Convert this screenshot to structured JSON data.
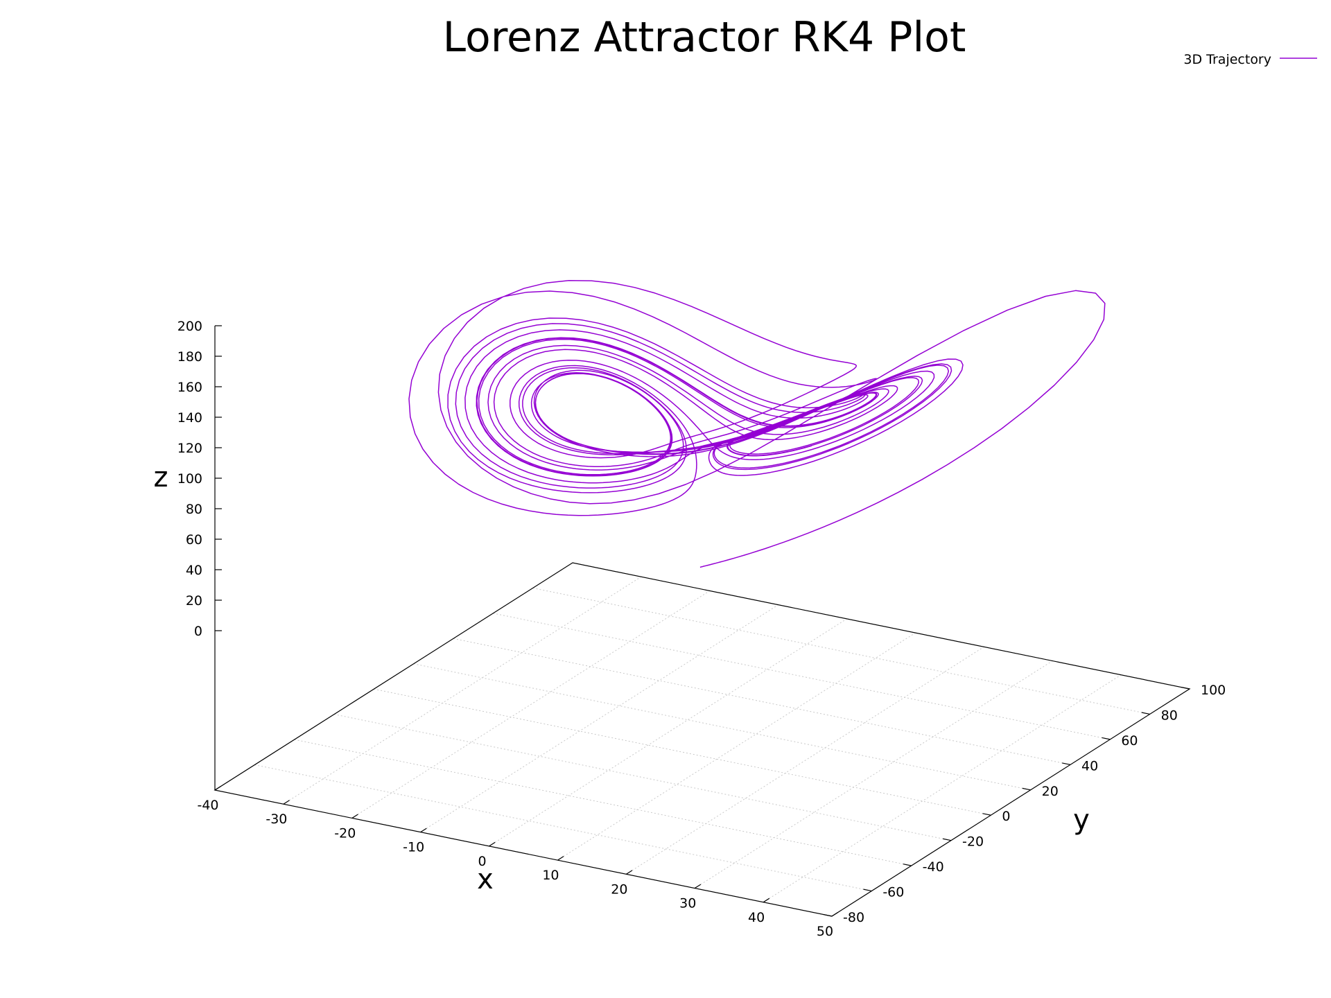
{
  "chart_data": {
    "type": "line",
    "title": "Lorenz Attractor RK4 Plot",
    "xlabel": "x",
    "ylabel": "y",
    "zlabel": "z",
    "xlim": [
      -40,
      50
    ],
    "ylim": [
      -80,
      100
    ],
    "zlim": [
      0,
      200
    ],
    "x_ticks": [
      "-40",
      "-30",
      "-20",
      "-10",
      "0",
      "10",
      "20",
      "30",
      "40",
      "50"
    ],
    "y_ticks": [
      "-80",
      "-60",
      "-40",
      "-20",
      "0",
      "20",
      "40",
      "60",
      "80",
      "100"
    ],
    "z_ticks": [
      "0",
      "20",
      "40",
      "60",
      "80",
      "100",
      "120",
      "140",
      "160",
      "180",
      "200"
    ],
    "grid": true,
    "legend": {
      "position": "top-right",
      "entries": [
        {
          "label": "3D Trajectory",
          "color": "#9400d3"
        }
      ]
    },
    "series": [
      {
        "name": "3D Trajectory",
        "color": "#9400d3",
        "description_points": "Lorenz system trajectory integrated with RK4; starts near (x≈0, y≈100, z≈0), rises to (x≈50, y≈100, z≈200) then spirals between two lobes"
      }
    ]
  }
}
